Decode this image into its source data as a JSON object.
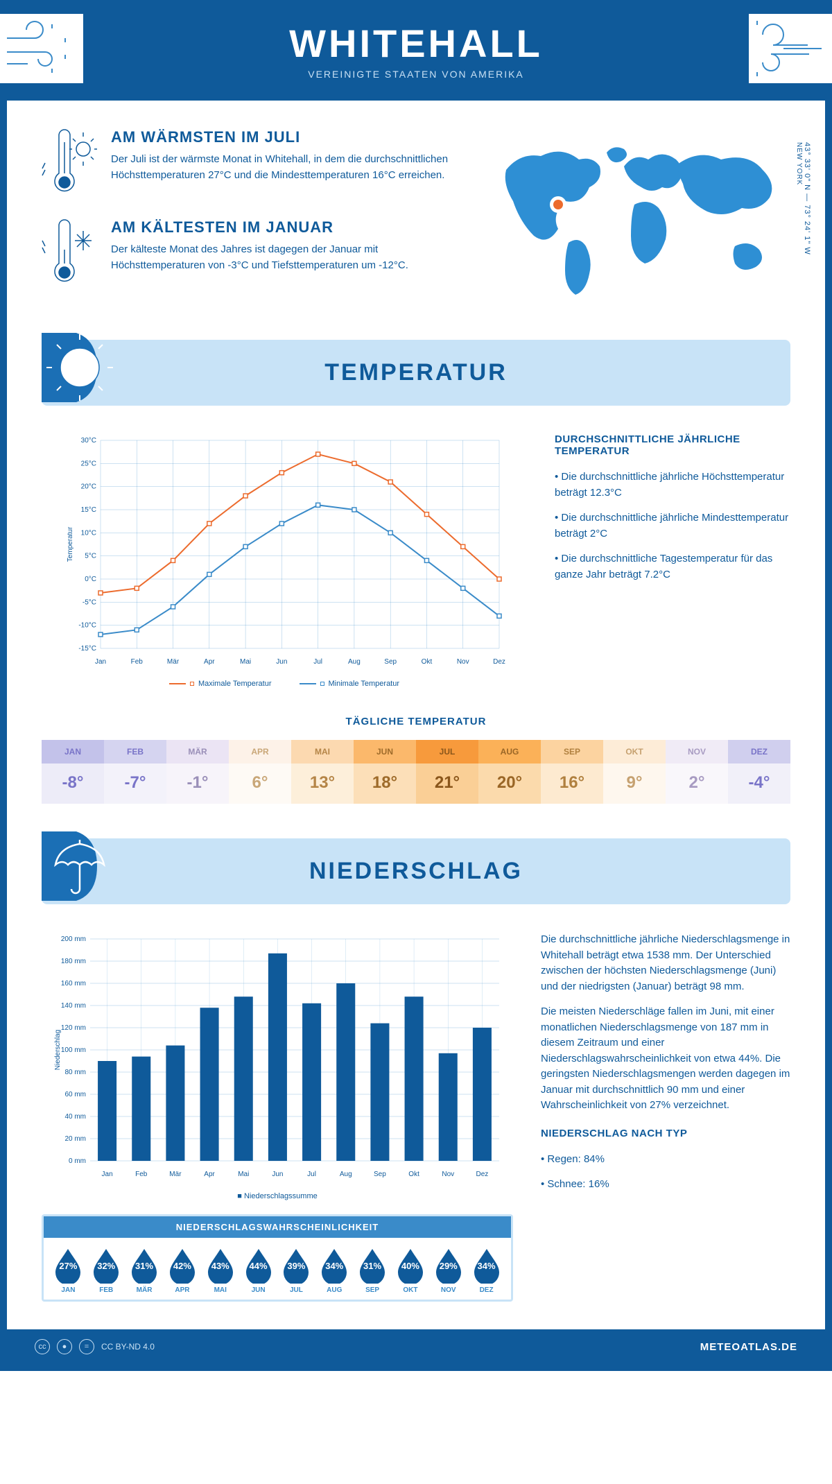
{
  "header": {
    "title": "WHITEHALL",
    "subtitle": "VEREINIGTE STAATEN VON AMERIKA"
  },
  "coords": {
    "lat": "43° 33' 0\" N — 73° 24' 1\" W",
    "loc": "NEW YORK"
  },
  "warmest": {
    "title": "AM WÄRMSTEN IM JULI",
    "text": "Der Juli ist der wärmste Monat in Whitehall, in dem die durchschnittlichen Höchsttemperaturen 27°C und die Mindesttemperaturen 16°C erreichen."
  },
  "coldest": {
    "title": "AM KÄLTESTEN IM JANUAR",
    "text": "Der kälteste Monat des Jahres ist dagegen der Januar mit Höchsttemperaturen von -3°C und Tiefsttemperaturen um -12°C."
  },
  "temperature_section": {
    "title": "TEMPERATUR",
    "side_heading": "DURCHSCHNITTLICHE JÄHRLICHE TEMPERATUR",
    "bullets": [
      "• Die durchschnittliche jährliche Höchsttemperatur beträgt 12.3°C",
      "• Die durchschnittliche jährliche Mindesttemperatur beträgt 2°C",
      "• Die durchschnittliche Tagestemperatur für das ganze Jahr beträgt 7.2°C"
    ],
    "chart": {
      "months": [
        "Jan",
        "Feb",
        "Mär",
        "Apr",
        "Mai",
        "Jun",
        "Jul",
        "Aug",
        "Sep",
        "Okt",
        "Nov",
        "Dez"
      ],
      "max": [
        -3,
        -2,
        4,
        12,
        18,
        23,
        27,
        25,
        21,
        14,
        7,
        0
      ],
      "min": [
        -12,
        -11,
        -6,
        1,
        7,
        12,
        16,
        15,
        10,
        4,
        -2,
        -8
      ],
      "ylim": [
        -15,
        30
      ],
      "ystep": 5,
      "max_color": "#ec6b2d",
      "min_color": "#3a8bc9",
      "grid_color": "#3a8bc9",
      "bg": "#ffffff",
      "ylabel": "Temperatur",
      "legend_max": "Maximale Temperatur",
      "legend_min": "Minimale Temperatur"
    },
    "daily": {
      "title": "TÄGLICHE TEMPERATUR",
      "months": [
        "JAN",
        "FEB",
        "MÄR",
        "APR",
        "MAI",
        "JUN",
        "JUL",
        "AUG",
        "SEP",
        "OKT",
        "NOV",
        "DEZ"
      ],
      "values": [
        "-8°",
        "-7°",
        "-1°",
        "6°",
        "13°",
        "18°",
        "21°",
        "20°",
        "16°",
        "9°",
        "2°",
        "-4°"
      ],
      "header_colors": [
        "#c3c2ea",
        "#d5d4f0",
        "#ebe4f4",
        "#fdf2e8",
        "#fcd9b0",
        "#fbb86b",
        "#f79a3c",
        "#fbb158",
        "#fcd3a0",
        "#fdecd7",
        "#f0ebf6",
        "#d0cfee"
      ],
      "value_colors": [
        "#edecf8",
        "#f3f2fa",
        "#f7f4fa",
        "#fefaf5",
        "#fdefda",
        "#fcdfb8",
        "#facf96",
        "#fbdaac",
        "#fdead0",
        "#fef7ee",
        "#f9f7fb",
        "#f1f0f9"
      ],
      "text_colors": [
        "#7974c8",
        "#7974c8",
        "#9a8fb8",
        "#c9a778",
        "#b58547",
        "#9e6b2a",
        "#8a561b",
        "#9a6626",
        "#b0803f",
        "#c6a170",
        "#a89bc2",
        "#7974c8"
      ]
    }
  },
  "precip_section": {
    "title": "NIEDERSCHLAG",
    "text1": "Die durchschnittliche jährliche Niederschlagsmenge in Whitehall beträgt etwa 1538 mm. Der Unterschied zwischen der höchsten Niederschlagsmenge (Juni) und der niedrigsten (Januar) beträgt 98 mm.",
    "text2": "Die meisten Niederschläge fallen im Juni, mit einer monatlichen Niederschlagsmenge von 187 mm in diesem Zeitraum und einer Niederschlagswahrscheinlichkeit von etwa 44%. Die geringsten Niederschlagsmengen werden dagegen im Januar mit durchschnittlich 90 mm und einer Wahrscheinlichkeit von 27% verzeichnet.",
    "type_heading": "NIEDERSCHLAG NACH TYP",
    "type_bullets": [
      "• Regen: 84%",
      "• Schnee: 16%"
    ],
    "chart": {
      "months": [
        "Jan",
        "Feb",
        "Mär",
        "Apr",
        "Mai",
        "Jun",
        "Jul",
        "Aug",
        "Sep",
        "Okt",
        "Nov",
        "Dez"
      ],
      "values": [
        90,
        94,
        104,
        138,
        148,
        187,
        142,
        160,
        124,
        148,
        97,
        120
      ],
      "ylim": [
        0,
        200
      ],
      "ystep": 20,
      "bar_color": "#0f5a9a",
      "grid_color": "#3a8bc9",
      "ylabel": "Niederschlag",
      "legend": "Niederschlagssumme"
    },
    "probability": {
      "title": "NIEDERSCHLAGSWAHRSCHEINLICHKEIT",
      "months": [
        "JAN",
        "FEB",
        "MÄR",
        "APR",
        "MAI",
        "JUN",
        "JUL",
        "AUG",
        "SEP",
        "OKT",
        "NOV",
        "DEZ"
      ],
      "values": [
        "27%",
        "32%",
        "31%",
        "42%",
        "43%",
        "44%",
        "39%",
        "34%",
        "31%",
        "40%",
        "29%",
        "34%"
      ],
      "drop_color": "#0f5a9a"
    }
  },
  "footer": {
    "license": "CC BY-ND 4.0",
    "brand": "METEOATLAS.DE"
  }
}
